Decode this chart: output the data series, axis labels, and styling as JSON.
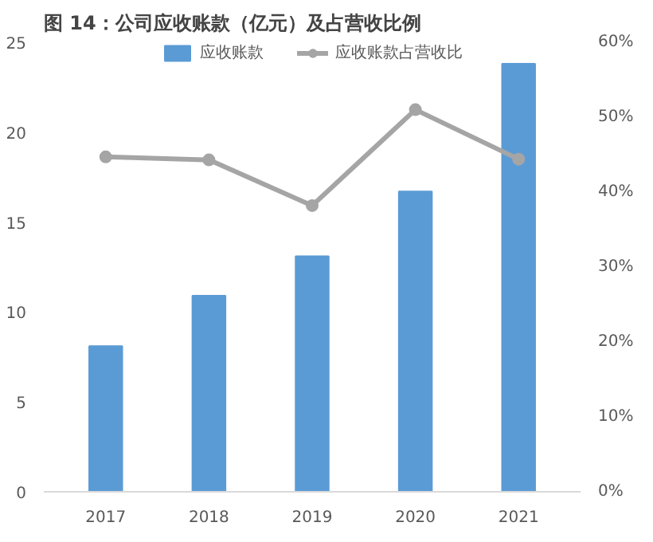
{
  "chart_data": {
    "type": "bar",
    "title": "图 14：公司应收账款（亿元）及占营收比例",
    "categories": [
      "2017",
      "2018",
      "2019",
      "2020",
      "2021"
    ],
    "series": [
      {
        "name": "应收账款",
        "color": "#5b9bd5",
        "values": [
          8.1,
          10.9,
          13.1,
          16.7,
          23.8
        ]
      },
      {
        "name": "应收账款占营收比",
        "color": "#a5a5a5",
        "type": "line",
        "axis": "y2",
        "marker": "circle",
        "values": [
          44.7,
          44.3,
          38.2,
          51.0,
          44.4
        ]
      }
    ],
    "ylim": [
      0,
      25
    ],
    "yticks": [
      0,
      5,
      10,
      15,
      20,
      25
    ],
    "y2lim": [
      0,
      60
    ],
    "y2ticks": [
      {
        "value": 0,
        "label": "0%"
      },
      {
        "value": 10,
        "label": "10%"
      },
      {
        "value": 20,
        "label": "20%"
      },
      {
        "value": 30,
        "label": "30%"
      },
      {
        "value": 40,
        "label": "40%"
      },
      {
        "value": 50,
        "label": "50%"
      },
      {
        "value": 60,
        "label": "60%"
      }
    ],
    "grid": false,
    "legend": "top"
  }
}
